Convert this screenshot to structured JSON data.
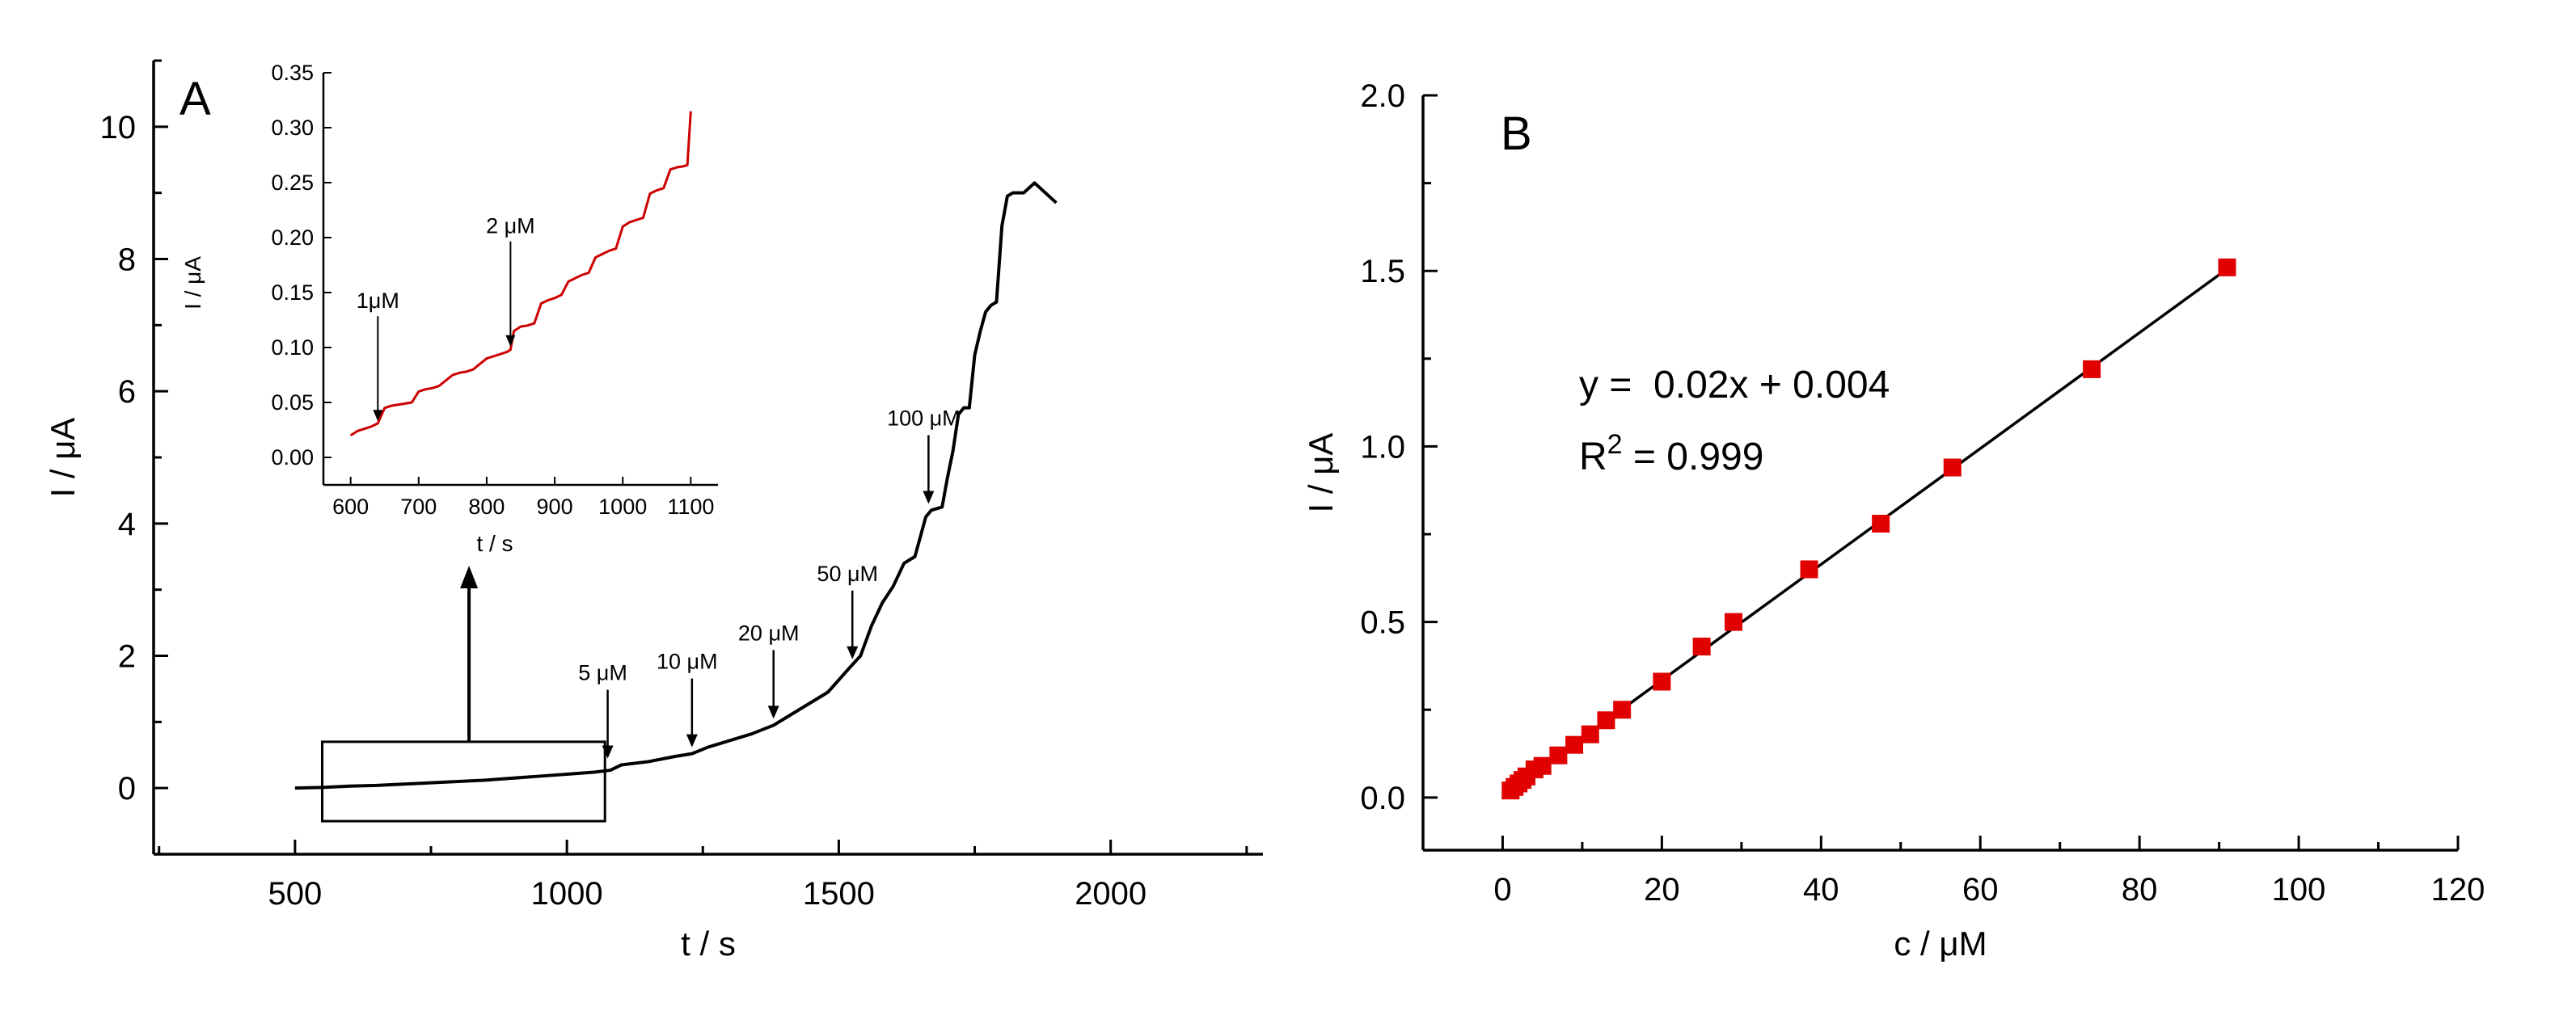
{
  "chart_data": [
    {
      "panel": "A",
      "type": "line",
      "xlabel": "t / s",
      "ylabel": "I / μA",
      "xlim": [
        240,
        2280
      ],
      "ylim": [
        -1,
        11
      ],
      "xticks": [
        500,
        1000,
        1500,
        2000
      ],
      "yticks": [
        0,
        2,
        4,
        6,
        8,
        10
      ],
      "series": [
        {
          "color": "#000000",
          "x": [
            500,
            550,
            600,
            650,
            700,
            750,
            800,
            850,
            900,
            950,
            1000,
            1050,
            1080,
            1100,
            1150,
            1200,
            1230,
            1260,
            1300,
            1340,
            1380,
            1400,
            1440,
            1480,
            1520,
            1540,
            1560,
            1580,
            1600,
            1620,
            1640,
            1660,
            1670,
            1690,
            1700,
            1710,
            1720,
            1730,
            1740,
            1750,
            1760,
            1770,
            1780,
            1790,
            1800,
            1810,
            1820,
            1840,
            1860,
            1880,
            1900
          ],
          "y": [
            0.0,
            0.01,
            0.03,
            0.04,
            0.06,
            0.08,
            0.1,
            0.12,
            0.15,
            0.18,
            0.21,
            0.24,
            0.27,
            0.35,
            0.4,
            0.48,
            0.52,
            0.62,
            0.72,
            0.82,
            0.95,
            1.05,
            1.25,
            1.45,
            1.82,
            2.0,
            2.45,
            2.8,
            3.05,
            3.4,
            3.5,
            4.1,
            4.2,
            4.25,
            4.7,
            5.1,
            5.65,
            5.75,
            5.75,
            6.55,
            6.9,
            7.2,
            7.3,
            7.35,
            8.5,
            8.95,
            9.0,
            9.0,
            9.15,
            9.0,
            8.85
          ]
        }
      ],
      "annotations": [
        {
          "label": "5 μM",
          "x": 1075,
          "y": 0.35
        },
        {
          "label": "10 μM",
          "x": 1230,
          "y": 0.52
        },
        {
          "label": "20 μM",
          "x": 1380,
          "y": 0.95
        },
        {
          "label": "50 μM",
          "x": 1525,
          "y": 1.85
        },
        {
          "label": "100 μM",
          "x": 1665,
          "y": 4.2
        }
      ],
      "zoom_box": {
        "x0": 550,
        "x1": 1070,
        "y0": -0.5,
        "y1": 0.7
      },
      "inset": {
        "type": "line",
        "xlabel": "t /  s",
        "ylabel": "I / μA",
        "xlim": [
          560,
          1140
        ],
        "ylim": [
          -0.025,
          0.35
        ],
        "xticks": [
          600,
          700,
          800,
          900,
          1000,
          1100
        ],
        "yticks": [
          "0.00",
          "0.05",
          "0.10",
          "0.15",
          "0.20",
          "0.25",
          "0.30",
          "0.35"
        ],
        "series": [
          {
            "color": "#cc0000",
            "x": [
              600,
              605,
              610,
              620,
              630,
              640,
              650,
              660,
              670,
              690,
              700,
              710,
              720,
              730,
              750,
              760,
              770,
              780,
              800,
              810,
              820,
              830,
              835,
              840,
              850,
              860,
              870,
              880,
              890,
              900,
              910,
              920,
              930,
              940,
              950,
              960,
              970,
              980,
              990,
              1000,
              1010,
              1020,
              1030,
              1040,
              1050,
              1060,
              1070,
              1080,
              1090,
              1095,
              1100
            ],
            "y": [
              0.02,
              0.022,
              0.024,
              0.026,
              0.028,
              0.031,
              0.045,
              0.047,
              0.048,
              0.05,
              0.06,
              0.062,
              0.063,
              0.065,
              0.075,
              0.077,
              0.078,
              0.08,
              0.09,
              0.092,
              0.094,
              0.096,
              0.098,
              0.115,
              0.119,
              0.12,
              0.122,
              0.14,
              0.143,
              0.145,
              0.148,
              0.16,
              0.163,
              0.166,
              0.168,
              0.182,
              0.185,
              0.188,
              0.19,
              0.21,
              0.214,
              0.216,
              0.218,
              0.24,
              0.243,
              0.245,
              0.262,
              0.264,
              0.265,
              0.266,
              0.315
            ]
          }
        ],
        "annotations": [
          {
            "label": "1μM",
            "x": 640,
            "y": 0.03
          },
          {
            "label": "2 μM",
            "x": 835,
            "y": 0.098
          }
        ]
      }
    },
    {
      "panel": "B",
      "type": "scatter",
      "xlabel": "c / μM",
      "ylabel": "I / μA",
      "xlim": [
        -10,
        120
      ],
      "ylim": [
        -0.15,
        2.0
      ],
      "xticks": [
        0,
        20,
        40,
        60,
        80,
        100,
        120
      ],
      "yticks": [
        "0.0",
        "0.5",
        "1.0",
        "1.5",
        "2.0"
      ],
      "points": {
        "color": "#e00000",
        "x": [
          1,
          1.5,
          2,
          2.5,
          3,
          4,
          5,
          7,
          9,
          11,
          13,
          15,
          20,
          25,
          29,
          38.5,
          47.5,
          56.5,
          74,
          91
        ],
        "y": [
          0.02,
          0.03,
          0.04,
          0.05,
          0.06,
          0.08,
          0.09,
          0.12,
          0.15,
          0.18,
          0.22,
          0.25,
          0.33,
          0.43,
          0.5,
          0.65,
          0.78,
          0.94,
          1.22,
          1.51
        ]
      },
      "fit": {
        "slope": 0.0165,
        "intercept": 0.004,
        "x_range": [
          0.5,
          91.5
        ]
      },
      "equation": "y =  0.02x + 0.004",
      "r2": {
        "prefix": "R",
        "sup": "2",
        "value": " = 0.999"
      }
    }
  ]
}
